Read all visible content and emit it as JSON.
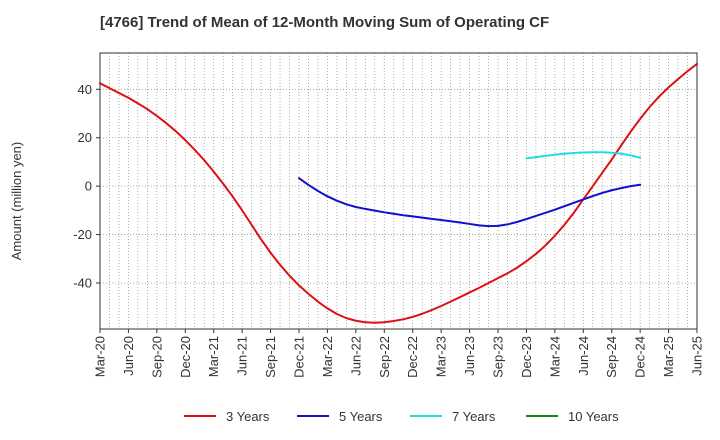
{
  "chart_data": {
    "type": "line",
    "title": "[4766]  Trend of Mean of 12-Month Moving Sum of Operating CF",
    "xlabel": "",
    "ylabel": "Amount (million yen)",
    "ylim": [
      -59,
      55
    ],
    "yticks": [
      -40,
      -20,
      0,
      20,
      40
    ],
    "x_tick_labels": [
      "Mar-20",
      "Jun-20",
      "Sep-20",
      "Dec-20",
      "Mar-21",
      "Jun-21",
      "Sep-21",
      "Dec-21",
      "Mar-22",
      "Jun-22",
      "Sep-22",
      "Dec-22",
      "Mar-23",
      "Jun-23",
      "Sep-23",
      "Dec-23",
      "Mar-24",
      "Jun-24",
      "Sep-24",
      "Dec-24",
      "Mar-25",
      "Jun-25"
    ],
    "grid": true,
    "legend_position": "bottom",
    "series": [
      {
        "name": "3 Years",
        "color": "#dd1111",
        "start_index": 0,
        "values": [
          42.5,
          40.5,
          38.5,
          36.5,
          34.2,
          31.8,
          29.0,
          26.0,
          22.7,
          19.0,
          15.0,
          10.7,
          6.0,
          1.0,
          -4.3,
          -10.0,
          -16.0,
          -22.0,
          -27.5,
          -32.5,
          -37.0,
          -41.0,
          -44.5,
          -47.7,
          -50.5,
          -52.8,
          -54.5,
          -55.6,
          -56.2,
          -56.4,
          -56.2,
          -55.7,
          -55.0,
          -54.0,
          -52.7,
          -51.2,
          -49.5,
          -47.7,
          -45.8,
          -43.9,
          -42.0,
          -40.0,
          -38.0,
          -36.0,
          -33.7,
          -31.0,
          -28.0,
          -24.5,
          -20.5,
          -16.0,
          -11.0,
          -5.5,
          0.0,
          5.5,
          11.0,
          16.8,
          22.5,
          27.8,
          32.7,
          37.0,
          40.8,
          44.2,
          47.5,
          50.5
        ]
      },
      {
        "name": "5 Years",
        "color": "#1111cc",
        "start_index": 21,
        "values": [
          3.3,
          0.5,
          -2.0,
          -4.2,
          -6.0,
          -7.5,
          -8.6,
          -9.4,
          -10.1,
          -10.8,
          -11.4,
          -12.0,
          -12.5,
          -13.0,
          -13.5,
          -14.0,
          -14.5,
          -15.0,
          -15.6,
          -16.2,
          -16.5,
          -16.4,
          -15.8,
          -14.8,
          -13.6,
          -12.3,
          -11.0,
          -9.7,
          -8.3,
          -6.9,
          -5.5,
          -4.1,
          -2.8,
          -1.7,
          -0.8,
          0.0,
          0.6
        ]
      },
      {
        "name": "7 Years",
        "color": "#22dddd",
        "start_index": 45,
        "values": [
          11.5,
          12.0,
          12.5,
          13.0,
          13.4,
          13.7,
          13.9,
          14.0,
          14.0,
          13.8,
          13.4,
          12.7,
          11.8
        ]
      },
      {
        "name": "10 Years",
        "color": "#118811",
        "start_index": 0,
        "values": []
      }
    ]
  }
}
